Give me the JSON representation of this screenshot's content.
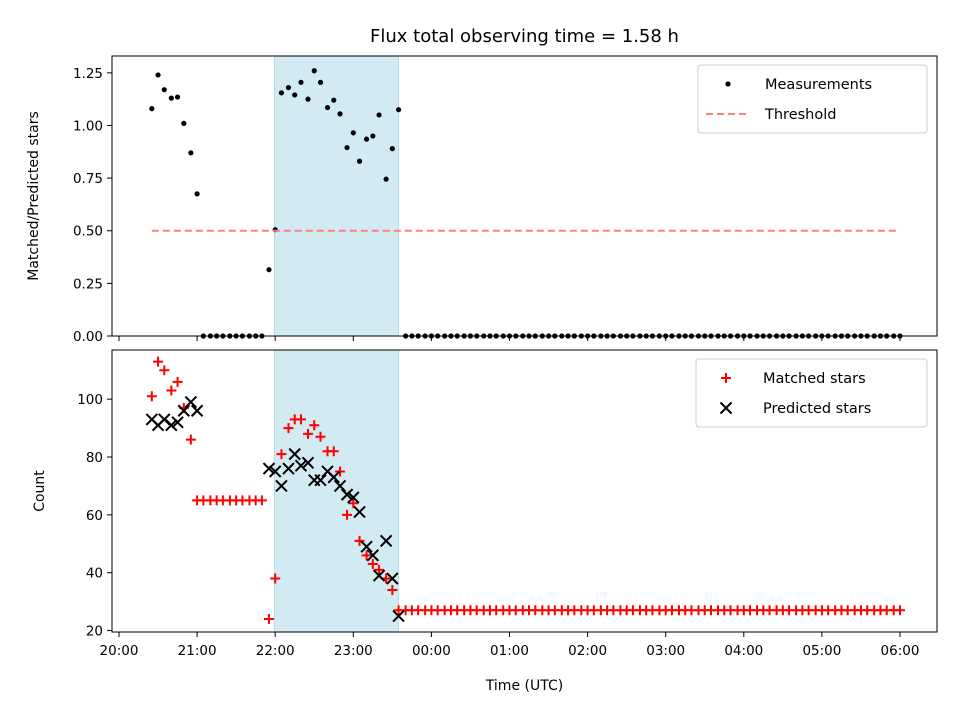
{
  "chart_data": [
    {
      "type": "scatter",
      "title": "Flux total observing time = 1.58 h",
      "ylabel": "Matched/Predicted stars",
      "xlabel": "",
      "ylim": [
        0,
        1.33
      ],
      "yticks": [
        0,
        0.25,
        0.5,
        0.75,
        1.0,
        1.25
      ],
      "ytick_labels": [
        "0.00",
        "0.25",
        "0.50",
        "0.75",
        "1.00",
        "1.25"
      ],
      "x_unit": "hours since 20:00 UTC",
      "xlim": [
        -0.07,
        10.5
      ],
      "highlight_span": [
        1.99,
        3.58
      ],
      "legend": [
        "Measurements",
        "Threshold"
      ],
      "legend_position": "upper right",
      "series": [
        {
          "name": "Measurements",
          "marker": "dot",
          "color": "#000000",
          "points": [
            [
              0.42,
              1.08
            ],
            [
              0.5,
              1.24
            ],
            [
              0.58,
              1.17
            ],
            [
              0.67,
              1.13
            ],
            [
              0.75,
              1.135
            ],
            [
              0.83,
              1.01
            ],
            [
              0.92,
              0.87
            ],
            [
              1.0,
              0.675
            ],
            [
              1.08,
              0
            ],
            [
              1.17,
              0
            ],
            [
              1.25,
              0
            ],
            [
              1.33,
              0
            ],
            [
              1.42,
              0
            ],
            [
              1.5,
              0
            ],
            [
              1.58,
              0
            ],
            [
              1.67,
              0
            ],
            [
              1.75,
              0
            ],
            [
              1.83,
              0
            ],
            [
              1.92,
              0.315
            ],
            [
              2.0,
              0.505
            ],
            [
              2.08,
              1.155
            ],
            [
              2.17,
              1.18
            ],
            [
              2.25,
              1.145
            ],
            [
              2.33,
              1.205
            ],
            [
              2.42,
              1.125
            ],
            [
              2.5,
              1.26
            ],
            [
              2.58,
              1.205
            ],
            [
              2.67,
              1.085
            ],
            [
              2.75,
              1.12
            ],
            [
              2.83,
              1.055
            ],
            [
              2.92,
              0.895
            ],
            [
              3.0,
              0.965
            ],
            [
              3.08,
              0.83
            ],
            [
              3.17,
              0.935
            ],
            [
              3.25,
              0.95
            ],
            [
              3.33,
              1.05
            ],
            [
              3.42,
              0.745
            ],
            [
              3.5,
              0.89
            ],
            [
              3.58,
              1.075
            ],
            [
              3.67,
              0
            ],
            [
              3.75,
              0
            ],
            [
              3.83,
              0
            ],
            [
              3.92,
              0
            ],
            [
              4.0,
              0
            ],
            [
              4.08,
              0
            ],
            [
              4.17,
              0
            ],
            [
              4.25,
              0
            ],
            [
              4.33,
              0
            ],
            [
              4.42,
              0
            ],
            [
              4.5,
              0
            ],
            [
              4.58,
              0
            ],
            [
              4.67,
              0
            ],
            [
              4.75,
              0
            ],
            [
              4.83,
              0
            ],
            [
              4.92,
              0
            ],
            [
              5.0,
              0
            ],
            [
              5.08,
              0
            ],
            [
              5.17,
              0
            ],
            [
              5.25,
              0
            ],
            [
              5.33,
              0
            ],
            [
              5.42,
              0
            ],
            [
              5.5,
              0
            ],
            [
              5.58,
              0
            ],
            [
              5.67,
              0
            ],
            [
              5.75,
              0
            ],
            [
              5.83,
              0
            ],
            [
              5.92,
              0
            ],
            [
              6.0,
              0
            ],
            [
              6.08,
              0
            ],
            [
              6.17,
              0
            ],
            [
              6.25,
              0
            ],
            [
              6.33,
              0
            ],
            [
              6.42,
              0
            ],
            [
              6.5,
              0
            ],
            [
              6.58,
              0
            ],
            [
              6.67,
              0
            ],
            [
              6.75,
              0
            ],
            [
              6.83,
              0
            ],
            [
              6.92,
              0
            ],
            [
              7.0,
              0
            ],
            [
              7.08,
              0
            ],
            [
              7.17,
              0
            ],
            [
              7.25,
              0
            ],
            [
              7.33,
              0
            ],
            [
              7.42,
              0
            ],
            [
              7.5,
              0
            ],
            [
              7.58,
              0
            ],
            [
              7.67,
              0
            ],
            [
              7.75,
              0
            ],
            [
              7.83,
              0
            ],
            [
              7.92,
              0
            ],
            [
              8.0,
              0
            ],
            [
              8.08,
              0
            ],
            [
              8.17,
              0
            ],
            [
              8.25,
              0
            ],
            [
              8.33,
              0
            ],
            [
              8.42,
              0
            ],
            [
              8.5,
              0
            ],
            [
              8.58,
              0
            ],
            [
              8.67,
              0
            ],
            [
              8.75,
              0
            ],
            [
              8.83,
              0
            ],
            [
              8.92,
              0
            ],
            [
              9.0,
              0
            ],
            [
              9.08,
              0
            ],
            [
              9.17,
              0
            ],
            [
              9.25,
              0
            ],
            [
              9.33,
              0
            ],
            [
              9.42,
              0
            ],
            [
              9.5,
              0
            ],
            [
              9.58,
              0
            ],
            [
              9.67,
              0
            ],
            [
              9.75,
              0
            ],
            [
              9.83,
              0
            ],
            [
              9.92,
              0
            ],
            [
              10.0,
              0
            ]
          ]
        },
        {
          "name": "Threshold",
          "marker": "dashed-line",
          "color": "#ff7f7f",
          "points": [
            [
              0.42,
              0.5
            ],
            [
              10.0,
              0.5
            ]
          ]
        }
      ]
    },
    {
      "type": "scatter",
      "title": "",
      "ylabel": "Count",
      "xlabel": "Time (UTC)",
      "ylim": [
        19.5,
        117
      ],
      "yticks": [
        20,
        40,
        60,
        80,
        100
      ],
      "ytick_labels": [
        "20",
        "40",
        "60",
        "80",
        "100"
      ],
      "x_unit": "hours since 20:00 UTC",
      "xlim": [
        -0.07,
        10.5
      ],
      "xticks": [
        0,
        1,
        2,
        3,
        4,
        5,
        6,
        7,
        8,
        9,
        10
      ],
      "xtick_labels": [
        "20:00",
        "21:00",
        "22:00",
        "23:00",
        "00:00",
        "01:00",
        "02:00",
        "03:00",
        "04:00",
        "05:00",
        "06:00"
      ],
      "highlight_span": [
        1.99,
        3.58
      ],
      "legend": [
        "Matched stars",
        "Predicted stars"
      ],
      "legend_position": "upper right",
      "series": [
        {
          "name": "Matched stars",
          "marker": "plus",
          "color": "#ff0000",
          "points": [
            [
              0.42,
              101
            ],
            [
              0.5,
              113
            ],
            [
              0.58,
              110
            ],
            [
              0.67,
              103
            ],
            [
              0.75,
              106
            ],
            [
              0.83,
              97
            ],
            [
              0.92,
              86
            ],
            [
              1.0,
              65
            ],
            [
              1.08,
              65
            ],
            [
              1.17,
              65
            ],
            [
              1.25,
              65
            ],
            [
              1.33,
              65
            ],
            [
              1.42,
              65
            ],
            [
              1.5,
              65
            ],
            [
              1.58,
              65
            ],
            [
              1.67,
              65
            ],
            [
              1.75,
              65
            ],
            [
              1.83,
              65
            ],
            [
              1.92,
              24
            ],
            [
              2.0,
              38
            ],
            [
              2.08,
              81
            ],
            [
              2.17,
              90
            ],
            [
              2.25,
              93
            ],
            [
              2.33,
              93
            ],
            [
              2.42,
              88
            ],
            [
              2.5,
              91
            ],
            [
              2.58,
              87
            ],
            [
              2.67,
              82
            ],
            [
              2.75,
              82
            ],
            [
              2.83,
              75
            ],
            [
              2.92,
              60
            ],
            [
              3.0,
              64
            ],
            [
              3.08,
              51
            ],
            [
              3.17,
              46
            ],
            [
              3.25,
              43
            ],
            [
              3.33,
              41
            ],
            [
              3.42,
              38
            ],
            [
              3.5,
              34
            ],
            [
              3.58,
              27
            ],
            [
              3.67,
              27
            ],
            [
              3.75,
              27
            ],
            [
              3.83,
              27
            ],
            [
              3.92,
              27
            ],
            [
              4.0,
              27
            ],
            [
              4.08,
              27
            ],
            [
              4.17,
              27
            ],
            [
              4.25,
              27
            ],
            [
              4.33,
              27
            ],
            [
              4.42,
              27
            ],
            [
              4.5,
              27
            ],
            [
              4.58,
              27
            ],
            [
              4.67,
              27
            ],
            [
              4.75,
              27
            ],
            [
              4.83,
              27
            ],
            [
              4.92,
              27
            ],
            [
              5.0,
              27
            ],
            [
              5.08,
              27
            ],
            [
              5.17,
              27
            ],
            [
              5.25,
              27
            ],
            [
              5.33,
              27
            ],
            [
              5.42,
              27
            ],
            [
              5.5,
              27
            ],
            [
              5.58,
              27
            ],
            [
              5.67,
              27
            ],
            [
              5.75,
              27
            ],
            [
              5.83,
              27
            ],
            [
              5.92,
              27
            ],
            [
              6.0,
              27
            ],
            [
              6.08,
              27
            ],
            [
              6.17,
              27
            ],
            [
              6.25,
              27
            ],
            [
              6.33,
              27
            ],
            [
              6.42,
              27
            ],
            [
              6.5,
              27
            ],
            [
              6.58,
              27
            ],
            [
              6.67,
              27
            ],
            [
              6.75,
              27
            ],
            [
              6.83,
              27
            ],
            [
              6.92,
              27
            ],
            [
              7.0,
              27
            ],
            [
              7.08,
              27
            ],
            [
              7.17,
              27
            ],
            [
              7.25,
              27
            ],
            [
              7.33,
              27
            ],
            [
              7.42,
              27
            ],
            [
              7.5,
              27
            ],
            [
              7.58,
              27
            ],
            [
              7.67,
              27
            ],
            [
              7.75,
              27
            ],
            [
              7.83,
              27
            ],
            [
              7.92,
              27
            ],
            [
              8.0,
              27
            ],
            [
              8.08,
              27
            ],
            [
              8.17,
              27
            ],
            [
              8.25,
              27
            ],
            [
              8.33,
              27
            ],
            [
              8.42,
              27
            ],
            [
              8.5,
              27
            ],
            [
              8.58,
              27
            ],
            [
              8.67,
              27
            ],
            [
              8.75,
              27
            ],
            [
              8.83,
              27
            ],
            [
              8.92,
              27
            ],
            [
              9.0,
              27
            ],
            [
              9.08,
              27
            ],
            [
              9.17,
              27
            ],
            [
              9.25,
              27
            ],
            [
              9.33,
              27
            ],
            [
              9.42,
              27
            ],
            [
              9.5,
              27
            ],
            [
              9.58,
              27
            ],
            [
              9.67,
              27
            ],
            [
              9.75,
              27
            ],
            [
              9.83,
              27
            ],
            [
              9.92,
              27
            ],
            [
              10.0,
              27
            ]
          ]
        },
        {
          "name": "Predicted stars",
          "marker": "x",
          "color": "#000000",
          "points": [
            [
              0.42,
              93
            ],
            [
              0.5,
              91
            ],
            [
              0.58,
              93
            ],
            [
              0.67,
              91
            ],
            [
              0.75,
              92
            ],
            [
              0.83,
              96
            ],
            [
              0.92,
              99
            ],
            [
              1.0,
              96
            ],
            [
              1.92,
              76
            ],
            [
              2.0,
              75
            ],
            [
              2.08,
              70
            ],
            [
              2.17,
              76
            ],
            [
              2.25,
              81
            ],
            [
              2.33,
              77
            ],
            [
              2.42,
              78
            ],
            [
              2.5,
              72
            ],
            [
              2.58,
              72
            ],
            [
              2.67,
              75
            ],
            [
              2.75,
              73
            ],
            [
              2.83,
              70
            ],
            [
              2.92,
              67
            ],
            [
              3.0,
              66
            ],
            [
              3.08,
              61
            ],
            [
              3.17,
              49
            ],
            [
              3.25,
              46
            ],
            [
              3.33,
              39
            ],
            [
              3.42,
              51
            ],
            [
              3.5,
              38
            ],
            [
              3.58,
              25
            ]
          ]
        }
      ]
    }
  ]
}
